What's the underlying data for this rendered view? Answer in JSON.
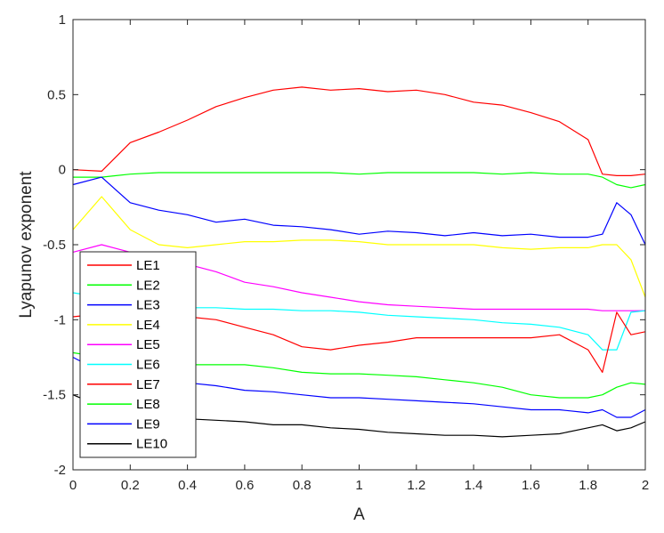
{
  "chart_data": {
    "type": "line",
    "title": "",
    "xlabel": "A",
    "ylabel": "Lyapunov exponent",
    "xlim": [
      0,
      2
    ],
    "ylim": [
      -2,
      1
    ],
    "xticks": [
      0,
      0.2,
      0.4,
      0.6,
      0.8,
      1,
      1.2,
      1.4,
      1.6,
      1.8,
      2
    ],
    "xtick_labels": [
      "0",
      "0.2",
      "0.4",
      "0.6",
      "0.8",
      "1",
      "1.2",
      "1.4",
      "1.6",
      "1.8",
      "2"
    ],
    "yticks": [
      1,
      0.5,
      0,
      -0.5,
      -1,
      -1.5,
      -2
    ],
    "ytick_labels": [
      "1",
      "0.5",
      "0",
      "-0.5",
      "-1",
      "-1.5",
      "-2"
    ],
    "grid": false,
    "legend_position": "bottom-left",
    "x": [
      0,
      0.1,
      0.2,
      0.3,
      0.4,
      0.5,
      0.6,
      0.7,
      0.8,
      0.9,
      1.0,
      1.1,
      1.2,
      1.3,
      1.4,
      1.5,
      1.6,
      1.7,
      1.8,
      1.85,
      1.9,
      1.95,
      2.0
    ],
    "series": [
      {
        "name": "LE1",
        "color": "#ff0000",
        "values": [
          0.0,
          -0.01,
          0.18,
          0.25,
          0.33,
          0.42,
          0.48,
          0.53,
          0.55,
          0.53,
          0.54,
          0.52,
          0.53,
          0.5,
          0.45,
          0.43,
          0.38,
          0.32,
          0.2,
          -0.03,
          -0.04,
          -0.04,
          -0.03
        ]
      },
      {
        "name": "LE2",
        "color": "#00ff00",
        "values": [
          -0.05,
          -0.05,
          -0.03,
          -0.02,
          -0.02,
          -0.02,
          -0.02,
          -0.02,
          -0.02,
          -0.02,
          -0.03,
          -0.02,
          -0.02,
          -0.02,
          -0.02,
          -0.03,
          -0.02,
          -0.03,
          -0.03,
          -0.05,
          -0.1,
          -0.12,
          -0.1
        ]
      },
      {
        "name": "LE3",
        "color": "#0000ff",
        "values": [
          -0.1,
          -0.05,
          -0.22,
          -0.27,
          -0.3,
          -0.35,
          -0.33,
          -0.37,
          -0.38,
          -0.4,
          -0.43,
          -0.41,
          -0.42,
          -0.44,
          -0.42,
          -0.44,
          -0.43,
          -0.45,
          -0.45,
          -0.43,
          -0.22,
          -0.3,
          -0.5
        ]
      },
      {
        "name": "LE4",
        "color": "#ffff00",
        "values": [
          -0.4,
          -0.18,
          -0.4,
          -0.5,
          -0.52,
          -0.5,
          -0.48,
          -0.48,
          -0.47,
          -0.47,
          -0.48,
          -0.5,
          -0.5,
          -0.5,
          -0.5,
          -0.52,
          -0.53,
          -0.52,
          -0.52,
          -0.5,
          -0.5,
          -0.6,
          -0.85
        ]
      },
      {
        "name": "LE5",
        "color": "#ff00ff",
        "values": [
          -0.55,
          -0.5,
          -0.55,
          -0.6,
          -0.63,
          -0.68,
          -0.75,
          -0.78,
          -0.82,
          -0.85,
          -0.88,
          -0.9,
          -0.91,
          -0.92,
          -0.93,
          -0.93,
          -0.93,
          -0.93,
          -0.93,
          -0.94,
          -0.94,
          -0.94,
          -0.94
        ]
      },
      {
        "name": "LE6",
        "color": "#00ffff",
        "values": [
          -0.82,
          -0.85,
          -0.88,
          -0.9,
          -0.92,
          -0.92,
          -0.93,
          -0.93,
          -0.94,
          -0.94,
          -0.95,
          -0.97,
          -0.98,
          -0.99,
          -1.0,
          -1.02,
          -1.03,
          -1.05,
          -1.1,
          -1.2,
          -1.2,
          -0.95,
          -0.94
        ]
      },
      {
        "name": "LE7",
        "color": "#ff0000",
        "values": [
          -0.98,
          -0.96,
          -0.97,
          -0.98,
          -0.98,
          -1.0,
          -1.05,
          -1.1,
          -1.18,
          -1.2,
          -1.17,
          -1.15,
          -1.12,
          -1.12,
          -1.12,
          -1.12,
          -1.12,
          -1.1,
          -1.2,
          -1.35,
          -0.95,
          -1.1,
          -1.08
        ]
      },
      {
        "name": "LE8",
        "color": "#00ff00",
        "values": [
          -1.22,
          -1.25,
          -1.27,
          -1.28,
          -1.3,
          -1.3,
          -1.3,
          -1.32,
          -1.35,
          -1.36,
          -1.36,
          -1.37,
          -1.38,
          -1.4,
          -1.42,
          -1.45,
          -1.5,
          -1.52,
          -1.52,
          -1.5,
          -1.45,
          -1.42,
          -1.43
        ]
      },
      {
        "name": "LE9",
        "color": "#0000ff",
        "values": [
          -1.25,
          -1.35,
          -1.38,
          -1.4,
          -1.42,
          -1.44,
          -1.47,
          -1.48,
          -1.5,
          -1.52,
          -1.52,
          -1.53,
          -1.54,
          -1.55,
          -1.56,
          -1.58,
          -1.6,
          -1.6,
          -1.62,
          -1.6,
          -1.65,
          -1.65,
          -1.6
        ]
      },
      {
        "name": "LE10",
        "color": "#000000",
        "values": [
          -1.5,
          -1.58,
          -1.62,
          -1.64,
          -1.66,
          -1.67,
          -1.68,
          -1.7,
          -1.7,
          -1.72,
          -1.73,
          -1.75,
          -1.76,
          -1.77,
          -1.77,
          -1.78,
          -1.77,
          -1.76,
          -1.72,
          -1.7,
          -1.74,
          -1.72,
          -1.68
        ]
      }
    ]
  }
}
